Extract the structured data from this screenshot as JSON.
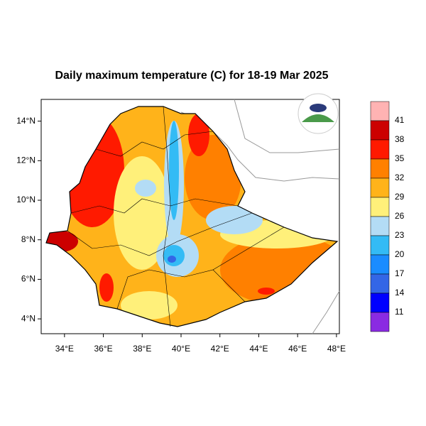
{
  "title": "Daily maximum temperature (C) for 18-19 Mar 2025",
  "map": {
    "xlim": [
      32.8,
      48.15
    ],
    "ylim": [
      3.25,
      15.1
    ],
    "lon_ticks": [
      {
        "value": 34,
        "label": "34°E"
      },
      {
        "value": 36,
        "label": "36°E"
      },
      {
        "value": 38,
        "label": "38°E"
      },
      {
        "value": 40,
        "label": "40°E"
      },
      {
        "value": 42,
        "label": "42°E"
      },
      {
        "value": 44,
        "label": "44°E"
      },
      {
        "value": 46,
        "label": "46°E"
      },
      {
        "value": 48,
        "label": "48°E"
      }
    ],
    "lat_ticks": [
      {
        "value": 4,
        "label": "4°N"
      },
      {
        "value": 6,
        "label": "6°N"
      },
      {
        "value": 8,
        "label": "8°N"
      },
      {
        "value": 10,
        "label": "10°N"
      },
      {
        "value": 12,
        "label": "12°N"
      },
      {
        "value": 14,
        "label": "14°N"
      }
    ]
  },
  "colorbar": {
    "levels": [
      41,
      38,
      35,
      32,
      29,
      26,
      23,
      20,
      17,
      14,
      11
    ],
    "colors": [
      "#ffb3b3",
      "#cc0000",
      "#ff1a00",
      "#ff8000",
      "#ffb31a",
      "#fff07a",
      "#b3dcf5",
      "#33bbf5",
      "#1a8cff",
      "#3366e6",
      "#0000ff",
      "#8a2be2"
    ]
  }
}
